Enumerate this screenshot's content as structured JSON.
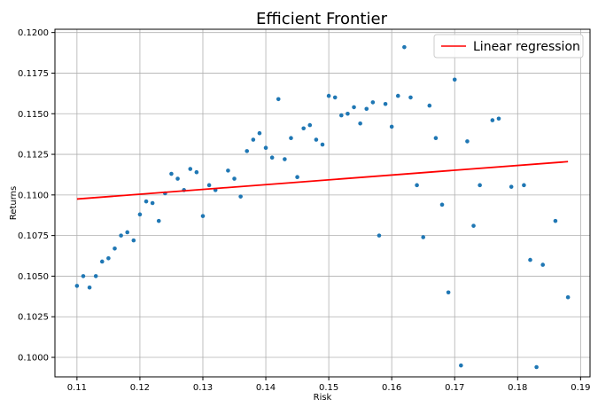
{
  "chart_data": {
    "type": "scatter",
    "title": "Efficient Frontier",
    "xlabel": "Risk",
    "ylabel": "Returns",
    "xlim": [
      0.1065,
      0.1915
    ],
    "ylim": [
      0.0988,
      0.1202
    ],
    "x_ticks": [
      0.11,
      0.12,
      0.13,
      0.14,
      0.15,
      0.16,
      0.17,
      0.18,
      0.19
    ],
    "x_tick_labels": [
      "0.11",
      "0.12",
      "0.13",
      "0.14",
      "0.15",
      "0.16",
      "0.17",
      "0.18",
      "0.19"
    ],
    "y_ticks": [
      0.1,
      0.1025,
      0.105,
      0.1075,
      0.11,
      0.1125,
      0.115,
      0.1175,
      0.12
    ],
    "y_tick_labels": [
      "0.1000",
      "0.1025",
      "0.1050",
      "0.1075",
      "0.1100",
      "0.1125",
      "0.1150",
      "0.1175",
      "0.1200"
    ],
    "grid": true,
    "legend_position": "top-right",
    "scatter_color": "#1f77b4",
    "line_color": "#ff0000",
    "series": [
      {
        "type": "scatter",
        "points": [
          [
            0.11,
            0.1044
          ],
          [
            0.111,
            0.105
          ],
          [
            0.112,
            0.1043
          ],
          [
            0.113,
            0.105
          ],
          [
            0.114,
            0.1059
          ],
          [
            0.115,
            0.1061
          ],
          [
            0.116,
            0.1067
          ],
          [
            0.117,
            0.1075
          ],
          [
            0.118,
            0.1077
          ],
          [
            0.119,
            0.1072
          ],
          [
            0.12,
            0.1088
          ],
          [
            0.121,
            0.1096
          ],
          [
            0.122,
            0.1095
          ],
          [
            0.123,
            0.1084
          ],
          [
            0.124,
            0.1101
          ],
          [
            0.125,
            0.1113
          ],
          [
            0.126,
            0.111
          ],
          [
            0.127,
            0.1103
          ],
          [
            0.128,
            0.1116
          ],
          [
            0.129,
            0.1114
          ],
          [
            0.13,
            0.1087
          ],
          [
            0.131,
            0.1106
          ],
          [
            0.132,
            0.1103
          ],
          [
            0.134,
            0.1115
          ],
          [
            0.135,
            0.111
          ],
          [
            0.136,
            0.1099
          ],
          [
            0.137,
            0.1127
          ],
          [
            0.138,
            0.1134
          ],
          [
            0.139,
            0.1138
          ],
          [
            0.14,
            0.1129
          ],
          [
            0.141,
            0.1123
          ],
          [
            0.142,
            0.1159
          ],
          [
            0.143,
            0.1122
          ],
          [
            0.144,
            0.1135
          ],
          [
            0.145,
            0.1111
          ],
          [
            0.146,
            0.1141
          ],
          [
            0.147,
            0.1143
          ],
          [
            0.148,
            0.1134
          ],
          [
            0.149,
            0.1131
          ],
          [
            0.15,
            0.1161
          ],
          [
            0.151,
            0.116
          ],
          [
            0.152,
            0.1149
          ],
          [
            0.153,
            0.115
          ],
          [
            0.154,
            0.1154
          ],
          [
            0.155,
            0.1144
          ],
          [
            0.156,
            0.1153
          ],
          [
            0.157,
            0.1157
          ],
          [
            0.158,
            0.1075
          ],
          [
            0.159,
            0.1156
          ],
          [
            0.16,
            0.1142
          ],
          [
            0.161,
            0.1161
          ],
          [
            0.162,
            0.1191
          ],
          [
            0.163,
            0.116
          ],
          [
            0.164,
            0.1106
          ],
          [
            0.165,
            0.1074
          ],
          [
            0.166,
            0.1155
          ],
          [
            0.167,
            0.1135
          ],
          [
            0.168,
            0.1094
          ],
          [
            0.169,
            0.104
          ],
          [
            0.17,
            0.1171
          ],
          [
            0.171,
            0.0995
          ],
          [
            0.172,
            0.1133
          ],
          [
            0.173,
            0.1081
          ],
          [
            0.174,
            0.1106
          ],
          [
            0.176,
            0.1146
          ],
          [
            0.177,
            0.1147
          ],
          [
            0.179,
            0.1105
          ],
          [
            0.181,
            0.1106
          ],
          [
            0.182,
            0.106
          ],
          [
            0.183,
            0.0994
          ],
          [
            0.184,
            0.1057
          ],
          [
            0.186,
            0.1084
          ],
          [
            0.188,
            0.1037
          ]
        ]
      },
      {
        "type": "line",
        "name": "Linear regression",
        "points": [
          [
            0.11,
            0.10975
          ],
          [
            0.188,
            0.11205
          ]
        ]
      }
    ]
  }
}
